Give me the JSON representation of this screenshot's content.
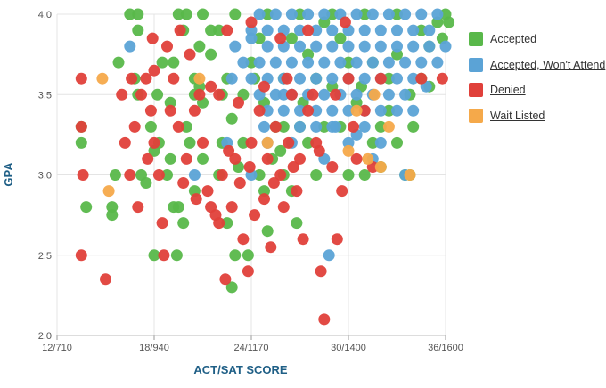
{
  "chart_data": {
    "type": "scatter",
    "xlabel": "ACT/SAT SCORE",
    "ylabel": "GPA",
    "xlim": [
      12,
      36
    ],
    "ylim": [
      2.0,
      4.0
    ],
    "x_ticks": [
      12,
      18,
      24,
      30,
      36
    ],
    "x_tick_labels": [
      "12/710",
      "18/940",
      "24/1170",
      "30/1400",
      "36/1600"
    ],
    "y_ticks": [
      2.0,
      2.5,
      3.0,
      3.5,
      4.0
    ],
    "y_tick_labels": [
      "2.0",
      "2.5",
      "3.0",
      "3.5",
      "4.0"
    ],
    "grid": true,
    "legend_position": "right",
    "series": [
      {
        "name": "Accepted",
        "color": "#59b84a",
        "points": [
          [
            13.5,
            3.2
          ],
          [
            13.5,
            3.3
          ],
          [
            13.8,
            2.8
          ],
          [
            15.4,
            2.75
          ],
          [
            15.4,
            2.8
          ],
          [
            15.6,
            3.0
          ],
          [
            15.8,
            3.7
          ],
          [
            16.5,
            4.0
          ],
          [
            17.0,
            4.0
          ],
          [
            17.0,
            3.9
          ],
          [
            16.8,
            3.6
          ],
          [
            17.0,
            3.5
          ],
          [
            17.2,
            3.0
          ],
          [
            17.5,
            2.95
          ],
          [
            18.0,
            2.5
          ],
          [
            18.3,
            3.2
          ],
          [
            18.8,
            3.0
          ],
          [
            19.2,
            3.7
          ],
          [
            19.8,
            3.9
          ],
          [
            20.0,
            4.0
          ],
          [
            19.5,
            4.0
          ],
          [
            19.4,
            2.5
          ],
          [
            19.2,
            2.8
          ],
          [
            19.8,
            2.7
          ],
          [
            20.2,
            3.2
          ],
          [
            20.5,
            3.5
          ],
          [
            20.8,
            3.8
          ],
          [
            21.0,
            4.0
          ],
          [
            21.5,
            3.9
          ],
          [
            22.0,
            3.0
          ],
          [
            22.2,
            3.2
          ],
          [
            22.5,
            3.6
          ],
          [
            22.8,
            2.3
          ],
          [
            23.0,
            2.5
          ],
          [
            22.5,
            2.7
          ],
          [
            23.5,
            3.2
          ],
          [
            23.8,
            2.5
          ],
          [
            24.5,
            3.0
          ],
          [
            24.8,
            2.9
          ],
          [
            25.0,
            2.65
          ],
          [
            25.3,
            3.1
          ],
          [
            25.5,
            3.3
          ],
          [
            26.0,
            3.0
          ],
          [
            26.5,
            2.9
          ],
          [
            26.8,
            2.7
          ],
          [
            27.0,
            3.3
          ],
          [
            27.5,
            3.2
          ],
          [
            28.0,
            3.0
          ],
          [
            28.5,
            3.3
          ],
          [
            29.5,
            3.3
          ],
          [
            30.0,
            3.0
          ],
          [
            31.0,
            3.0
          ],
          [
            31.5,
            3.2
          ],
          [
            32.0,
            3.3
          ],
          [
            32.5,
            3.4
          ],
          [
            33.0,
            3.2
          ],
          [
            33.5,
            3.0
          ],
          [
            33.8,
            3.5
          ],
          [
            34.5,
            3.6
          ],
          [
            35.0,
            3.8
          ],
          [
            36.0,
            4.0
          ],
          [
            35.5,
            3.95
          ],
          [
            34.0,
            3.3
          ],
          [
            30.5,
            3.45
          ],
          [
            29.0,
            3.55
          ],
          [
            26.0,
            3.6
          ],
          [
            24.0,
            3.7
          ],
          [
            22.0,
            3.9
          ],
          [
            21.0,
            3.45
          ],
          [
            20.0,
            3.3
          ],
          [
            23.0,
            4.0
          ],
          [
            25.0,
            4.0
          ],
          [
            27.0,
            4.0
          ],
          [
            29.0,
            4.0
          ],
          [
            31.0,
            4.0
          ],
          [
            33.0,
            4.0
          ],
          [
            30.0,
            3.7
          ],
          [
            28.0,
            3.6
          ],
          [
            27.5,
            3.75
          ],
          [
            26.5,
            3.85
          ],
          [
            24.5,
            3.85
          ],
          [
            23.5,
            3.5
          ],
          [
            21.5,
            3.75
          ],
          [
            20.5,
            3.6
          ],
          [
            19.0,
            3.45
          ],
          [
            18.5,
            3.7
          ],
          [
            17.8,
            3.3
          ],
          [
            31.5,
            3.7
          ],
          [
            33.0,
            3.75
          ],
          [
            32.5,
            3.6
          ],
          [
            34.5,
            3.9
          ],
          [
            35.0,
            3.55
          ],
          [
            29.5,
            3.85
          ],
          [
            28.5,
            3.95
          ],
          [
            26.0,
            3.3
          ],
          [
            24.8,
            3.45
          ],
          [
            22.8,
            3.35
          ],
          [
            21.0,
            3.1
          ],
          [
            19.0,
            3.1
          ],
          [
            18.0,
            3.15
          ],
          [
            30.8,
            3.55
          ],
          [
            27.2,
            3.45
          ],
          [
            25.8,
            3.15
          ],
          [
            23.2,
            3.05
          ],
          [
            20.5,
            2.9
          ],
          [
            19.5,
            2.8
          ],
          [
            33.8,
            3.0
          ],
          [
            32.0,
            3.05
          ],
          [
            24.2,
            3.6
          ],
          [
            22.2,
            3.5
          ],
          [
            20.8,
            3.55
          ],
          [
            18.2,
            3.5
          ],
          [
            36.2,
            3.95
          ],
          [
            35.8,
            3.85
          ]
        ]
      },
      {
        "name": "Accepted, Won't Attend",
        "color": "#5ba3d6",
        "points": [
          [
            16.5,
            3.8
          ],
          [
            20.5,
            3.0
          ],
          [
            24.0,
            3.0
          ],
          [
            25.0,
            3.2
          ],
          [
            26.5,
            3.2
          ],
          [
            28.5,
            3.1
          ],
          [
            29.0,
            3.3
          ],
          [
            30.0,
            3.2
          ],
          [
            31.0,
            3.3
          ],
          [
            32.0,
            3.2
          ],
          [
            33.0,
            3.4
          ],
          [
            34.0,
            3.4
          ],
          [
            34.8,
            3.55
          ],
          [
            35.5,
            3.7
          ],
          [
            36.0,
            3.8
          ],
          [
            28.8,
            2.5
          ],
          [
            29.2,
            3.3
          ],
          [
            33.5,
            3.0
          ],
          [
            31.5,
            3.1
          ],
          [
            30.5,
            3.25
          ],
          [
            22.5,
            3.2
          ],
          [
            23.0,
            3.8
          ],
          [
            24.0,
            3.85
          ],
          [
            25.0,
            3.8
          ],
          [
            26.0,
            3.8
          ],
          [
            27.0,
            3.8
          ],
          [
            28.0,
            3.8
          ],
          [
            29.0,
            3.8
          ],
          [
            30.0,
            3.8
          ],
          [
            31.0,
            3.8
          ],
          [
            32.0,
            3.8
          ],
          [
            33.0,
            3.8
          ],
          [
            34.0,
            3.8
          ],
          [
            35.0,
            3.8
          ],
          [
            23.5,
            3.7
          ],
          [
            24.5,
            3.7
          ],
          [
            25.5,
            3.7
          ],
          [
            26.5,
            3.7
          ],
          [
            27.5,
            3.7
          ],
          [
            28.5,
            3.7
          ],
          [
            29.5,
            3.7
          ],
          [
            30.5,
            3.7
          ],
          [
            31.5,
            3.7
          ],
          [
            32.5,
            3.7
          ],
          [
            33.5,
            3.7
          ],
          [
            34.5,
            3.7
          ],
          [
            24.0,
            3.6
          ],
          [
            25.0,
            3.6
          ],
          [
            26.0,
            3.6
          ],
          [
            27.0,
            3.6
          ],
          [
            28.0,
            3.6
          ],
          [
            29.0,
            3.6
          ],
          [
            30.0,
            3.6
          ],
          [
            31.0,
            3.6
          ],
          [
            32.0,
            3.6
          ],
          [
            33.0,
            3.6
          ],
          [
            34.0,
            3.6
          ],
          [
            24.5,
            3.5
          ],
          [
            25.5,
            3.5
          ],
          [
            26.5,
            3.5
          ],
          [
            27.5,
            3.5
          ],
          [
            28.5,
            3.5
          ],
          [
            29.5,
            3.5
          ],
          [
            30.5,
            3.5
          ],
          [
            31.5,
            3.5
          ],
          [
            32.5,
            3.5
          ],
          [
            33.5,
            3.5
          ],
          [
            25.0,
            3.4
          ],
          [
            26.0,
            3.4
          ],
          [
            27.0,
            3.4
          ],
          [
            28.0,
            3.4
          ],
          [
            29.0,
            3.4
          ],
          [
            30.0,
            3.4
          ],
          [
            31.0,
            3.4
          ],
          [
            32.0,
            3.4
          ],
          [
            24.0,
            3.9
          ],
          [
            25.0,
            3.9
          ],
          [
            26.0,
            3.9
          ],
          [
            27.0,
            3.9
          ],
          [
            28.0,
            3.9
          ],
          [
            29.0,
            3.9
          ],
          [
            30.0,
            3.9
          ],
          [
            31.0,
            3.9
          ],
          [
            32.0,
            3.9
          ],
          [
            33.0,
            3.9
          ],
          [
            34.0,
            3.9
          ],
          [
            35.0,
            3.9
          ],
          [
            24.5,
            4.0
          ],
          [
            25.5,
            4.0
          ],
          [
            26.5,
            4.0
          ],
          [
            27.5,
            4.0
          ],
          [
            28.5,
            4.0
          ],
          [
            29.5,
            4.0
          ],
          [
            30.5,
            4.0
          ],
          [
            31.5,
            4.0
          ],
          [
            32.5,
            4.0
          ],
          [
            33.5,
            4.0
          ],
          [
            34.5,
            4.0
          ],
          [
            35.5,
            4.0
          ],
          [
            27.0,
            3.3
          ],
          [
            28.0,
            3.3
          ],
          [
            26.0,
            3.5
          ],
          [
            24.8,
            3.3
          ],
          [
            22.8,
            3.6
          ]
        ]
      },
      {
        "name": "Denied",
        "color": "#e0403a",
        "points": [
          [
            13.5,
            3.6
          ],
          [
            13.5,
            3.3
          ],
          [
            13.6,
            3.0
          ],
          [
            13.5,
            2.5
          ],
          [
            15.0,
            2.35
          ],
          [
            16.0,
            3.5
          ],
          [
            16.2,
            3.2
          ],
          [
            16.5,
            3.0
          ],
          [
            16.8,
            3.3
          ],
          [
            17.0,
            2.8
          ],
          [
            17.5,
            3.6
          ],
          [
            17.8,
            3.4
          ],
          [
            18.0,
            3.2
          ],
          [
            18.3,
            3.0
          ],
          [
            18.5,
            2.7
          ],
          [
            18.6,
            2.5
          ],
          [
            18.8,
            3.8
          ],
          [
            19.0,
            3.4
          ],
          [
            19.5,
            3.3
          ],
          [
            20.0,
            3.1
          ],
          [
            20.5,
            3.4
          ],
          [
            21.0,
            3.2
          ],
          [
            21.3,
            2.9
          ],
          [
            21.5,
            2.8
          ],
          [
            21.8,
            2.75
          ],
          [
            22.0,
            2.7
          ],
          [
            22.0,
            3.5
          ],
          [
            22.2,
            3.0
          ],
          [
            22.4,
            2.35
          ],
          [
            22.8,
            2.8
          ],
          [
            23.0,
            3.1
          ],
          [
            23.3,
            2.95
          ],
          [
            23.5,
            2.6
          ],
          [
            23.8,
            2.4
          ],
          [
            24.0,
            3.2
          ],
          [
            24.2,
            2.75
          ],
          [
            24.5,
            3.4
          ],
          [
            24.8,
            2.85
          ],
          [
            25.0,
            3.1
          ],
          [
            25.2,
            2.55
          ],
          [
            25.5,
            3.3
          ],
          [
            25.8,
            3.0
          ],
          [
            26.0,
            2.8
          ],
          [
            26.3,
            3.2
          ],
          [
            26.5,
            3.5
          ],
          [
            26.8,
            2.9
          ],
          [
            27.0,
            3.1
          ],
          [
            27.2,
            2.6
          ],
          [
            27.5,
            3.4
          ],
          [
            28.0,
            3.2
          ],
          [
            28.3,
            2.4
          ],
          [
            28.5,
            2.1
          ],
          [
            29.0,
            3.05
          ],
          [
            29.3,
            2.6
          ],
          [
            29.6,
            2.9
          ],
          [
            30.0,
            3.6
          ],
          [
            30.3,
            3.3
          ],
          [
            30.5,
            3.1
          ],
          [
            31.0,
            3.4
          ],
          [
            31.5,
            3.05
          ],
          [
            32.0,
            3.6
          ],
          [
            34.5,
            3.6
          ],
          [
            35.8,
            3.6
          ],
          [
            17.2,
            3.5
          ],
          [
            18.0,
            3.65
          ],
          [
            19.2,
            3.6
          ],
          [
            20.8,
            3.5
          ],
          [
            21.5,
            3.55
          ],
          [
            23.2,
            3.45
          ],
          [
            24.8,
            3.55
          ],
          [
            26.2,
            3.6
          ],
          [
            27.8,
            3.5
          ],
          [
            29.2,
            3.5
          ],
          [
            20.2,
            3.75
          ],
          [
            19.6,
            3.9
          ],
          [
            22.5,
            3.9
          ],
          [
            24.0,
            3.95
          ],
          [
            25.8,
            3.85
          ],
          [
            27.5,
            3.9
          ],
          [
            29.8,
            3.95
          ],
          [
            17.6,
            3.1
          ],
          [
            19.8,
            2.95
          ],
          [
            20.6,
            2.85
          ],
          [
            22.6,
            3.15
          ],
          [
            23.9,
            3.05
          ],
          [
            25.4,
            2.95
          ],
          [
            26.6,
            3.05
          ],
          [
            28.2,
            3.15
          ],
          [
            16.6,
            3.6
          ],
          [
            17.9,
            3.85
          ]
        ]
      },
      {
        "name": "Wait Listed",
        "color": "#f5a94a",
        "points": [
          [
            14.8,
            3.6
          ],
          [
            15.2,
            2.9
          ],
          [
            20.8,
            3.6
          ],
          [
            25.0,
            3.2
          ],
          [
            30.5,
            3.4
          ],
          [
            31.2,
            3.1
          ],
          [
            32.0,
            3.05
          ],
          [
            32.5,
            3.3
          ],
          [
            33.8,
            3.0
          ],
          [
            30.0,
            3.15
          ],
          [
            31.6,
            3.5
          ]
        ]
      }
    ]
  }
}
